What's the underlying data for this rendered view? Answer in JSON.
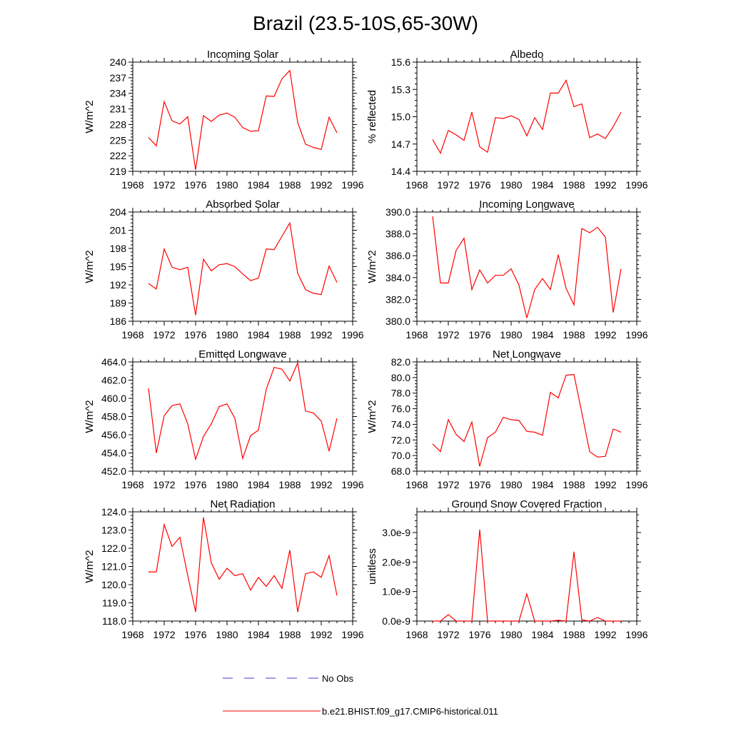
{
  "title": "Brazil (23.5-10S,65-30W)",
  "legend": [
    {
      "label": "No Obs",
      "color": "#3b3bcc",
      "style": "dashed"
    },
    {
      "label": "b.e21.BHIST.f09_g17.CMIP6-historical.011",
      "color": "#ff0000",
      "style": "solid"
    }
  ],
  "chart_data": [
    {
      "type": "line",
      "title": "Incoming Solar",
      "ylabel": "W/m^2",
      "xlim": [
        1968,
        1996
      ],
      "ylim": [
        219,
        240
      ],
      "xticks": [
        1968,
        1972,
        1976,
        1980,
        1984,
        1988,
        1992,
        1996
      ],
      "yticks": [
        "219",
        "222",
        "225",
        "228",
        "231",
        "234",
        "237",
        "240"
      ],
      "x": [
        1970,
        1971,
        1972,
        1973,
        1974,
        1975,
        1976,
        1977,
        1978,
        1979,
        1980,
        1981,
        1982,
        1983,
        1984,
        1985,
        1986,
        1987,
        1988,
        1989,
        1990,
        1991,
        1992,
        1993,
        1994
      ],
      "series": [
        {
          "values": [
            225.5,
            223.9,
            232.4,
            228.7,
            228.1,
            229.5,
            219.3,
            229.7,
            228.6,
            229.8,
            230.2,
            229.4,
            227.4,
            226.7,
            226.8,
            233.5,
            233.4,
            236.8,
            238.4,
            228.4,
            224.2,
            223.6,
            223.2,
            229.4,
            226.4
          ],
          "color": "#ff0000"
        }
      ]
    },
    {
      "type": "line",
      "title": "Albedo",
      "ylabel": "% reflected",
      "xlim": [
        1968,
        1996
      ],
      "ylim": [
        14.4,
        15.6
      ],
      "xticks": [
        1968,
        1972,
        1976,
        1980,
        1984,
        1988,
        1992,
        1996
      ],
      "yticks": [
        "14.4",
        "14.7",
        "15.0",
        "15.3",
        "15.6"
      ],
      "x": [
        1970,
        1971,
        1972,
        1973,
        1974,
        1975,
        1976,
        1977,
        1978,
        1979,
        1980,
        1981,
        1982,
        1983,
        1984,
        1985,
        1986,
        1987,
        1988,
        1989,
        1990,
        1991,
        1992,
        1993,
        1994
      ],
      "series": [
        {
          "values": [
            14.75,
            14.6,
            14.85,
            14.8,
            14.74,
            15.05,
            14.67,
            14.61,
            14.99,
            14.98,
            15.01,
            14.97,
            14.79,
            14.99,
            14.86,
            15.26,
            15.26,
            15.4,
            15.11,
            15.14,
            14.77,
            14.81,
            14.76,
            14.89,
            15.05
          ],
          "color": "#ff0000"
        }
      ]
    },
    {
      "type": "line",
      "title": "Absorbed Solar",
      "ylabel": "W/m^2",
      "xlim": [
        1968,
        1996
      ],
      "ylim": [
        186,
        204
      ],
      "xticks": [
        1968,
        1972,
        1976,
        1980,
        1984,
        1988,
        1992,
        1996
      ],
      "yticks": [
        "186",
        "189",
        "192",
        "195",
        "198",
        "201",
        "204"
      ],
      "x": [
        1970,
        1971,
        1972,
        1973,
        1974,
        1975,
        1976,
        1977,
        1978,
        1979,
        1980,
        1981,
        1982,
        1983,
        1984,
        1985,
        1986,
        1987,
        1988,
        1989,
        1990,
        1991,
        1992,
        1993,
        1994
      ],
      "series": [
        {
          "values": [
            192.2,
            191.3,
            197.9,
            194.9,
            194.5,
            194.9,
            187.0,
            196.2,
            194.3,
            195.3,
            195.5,
            195.0,
            193.8,
            192.7,
            193.1,
            197.9,
            197.8,
            200.0,
            202.2,
            193.9,
            191.2,
            190.6,
            190.4,
            195.1,
            192.4
          ],
          "color": "#ff0000"
        }
      ]
    },
    {
      "type": "line",
      "title": "Incoming Longwave",
      "ylabel": "W/m^2",
      "xlim": [
        1968,
        1996
      ],
      "ylim": [
        380.0,
        390.0
      ],
      "xticks": [
        1968,
        1972,
        1976,
        1980,
        1984,
        1988,
        1992,
        1996
      ],
      "yticks": [
        "380.0",
        "382.0",
        "384.0",
        "386.0",
        "388.0",
        "390.0"
      ],
      "x": [
        1970,
        1971,
        1972,
        1973,
        1974,
        1975,
        1976,
        1977,
        1978,
        1979,
        1980,
        1981,
        1982,
        1983,
        1984,
        1985,
        1986,
        1987,
        1988,
        1989,
        1990,
        1991,
        1992,
        1993,
        1994
      ],
      "series": [
        {
          "values": [
            389.6,
            383.5,
            383.5,
            386.5,
            387.6,
            382.9,
            384.7,
            383.5,
            384.2,
            384.2,
            384.8,
            383.3,
            380.3,
            382.9,
            383.9,
            382.9,
            386.1,
            383.0,
            381.5,
            388.5,
            388.1,
            388.6,
            387.7,
            380.8,
            384.8
          ],
          "color": "#ff0000"
        }
      ]
    },
    {
      "type": "line",
      "title": "Emitted Longwave",
      "ylabel": "W/m^2",
      "xlim": [
        1968,
        1996
      ],
      "ylim": [
        452.0,
        464.0
      ],
      "xticks": [
        1968,
        1972,
        1976,
        1980,
        1984,
        1988,
        1992,
        1996
      ],
      "yticks": [
        "452.0",
        "454.0",
        "456.0",
        "458.0",
        "460.0",
        "462.0",
        "464.0"
      ],
      "x": [
        1970,
        1971,
        1972,
        1973,
        1974,
        1975,
        1976,
        1977,
        1978,
        1979,
        1980,
        1981,
        1982,
        1983,
        1984,
        1985,
        1986,
        1987,
        1988,
        1989,
        1990,
        1991,
        1992,
        1993,
        1994
      ],
      "series": [
        {
          "values": [
            461.1,
            454.0,
            458.1,
            459.2,
            459.4,
            457.2,
            453.3,
            455.8,
            457.2,
            459.1,
            459.4,
            457.8,
            453.4,
            455.9,
            456.5,
            461.0,
            463.4,
            463.2,
            461.9,
            463.9,
            458.6,
            458.4,
            457.5,
            454.2,
            457.8
          ],
          "color": "#ff0000"
        }
      ]
    },
    {
      "type": "line",
      "title": "Net Longwave",
      "ylabel": "W/m^2",
      "xlim": [
        1968,
        1996
      ],
      "ylim": [
        68.0,
        82.0
      ],
      "xticks": [
        1968,
        1972,
        1976,
        1980,
        1984,
        1988,
        1992,
        1996
      ],
      "yticks": [
        "68.0",
        "70.0",
        "72.0",
        "74.0",
        "76.0",
        "78.0",
        "80.0",
        "82.0"
      ],
      "x": [
        1970,
        1971,
        1972,
        1973,
        1974,
        1975,
        1976,
        1977,
        1978,
        1979,
        1980,
        1981,
        1982,
        1983,
        1984,
        1985,
        1986,
        1987,
        1988,
        1989,
        1990,
        1991,
        1992,
        1993,
        1994
      ],
      "series": [
        {
          "values": [
            71.5,
            70.5,
            74.6,
            72.7,
            71.8,
            74.3,
            68.6,
            72.3,
            73.0,
            74.9,
            74.6,
            74.5,
            73.1,
            73.0,
            72.6,
            78.1,
            77.4,
            80.3,
            80.4,
            75.5,
            70.5,
            69.8,
            69.9,
            73.4,
            73.0
          ],
          "color": "#ff0000"
        }
      ]
    },
    {
      "type": "line",
      "title": "Net Radiation",
      "ylabel": "W/m^2",
      "xlim": [
        1968,
        1996
      ],
      "ylim": [
        118.0,
        124.0
      ],
      "xticks": [
        1968,
        1972,
        1976,
        1980,
        1984,
        1988,
        1992,
        1996
      ],
      "yticks": [
        "118.0",
        "119.0",
        "120.0",
        "121.0",
        "122.0",
        "123.0",
        "124.0"
      ],
      "x": [
        1970,
        1971,
        1972,
        1973,
        1974,
        1975,
        1976,
        1977,
        1978,
        1979,
        1980,
        1981,
        1982,
        1983,
        1984,
        1985,
        1986,
        1987,
        1988,
        1989,
        1990,
        1991,
        1992,
        1993,
        1994
      ],
      "series": [
        {
          "values": [
            120.7,
            120.7,
            123.3,
            122.1,
            122.6,
            120.5,
            118.5,
            123.7,
            121.2,
            120.3,
            120.9,
            120.5,
            120.6,
            119.7,
            120.4,
            119.9,
            120.5,
            119.8,
            121.9,
            118.5,
            120.6,
            120.7,
            120.4,
            121.6,
            119.4
          ],
          "color": "#ff0000"
        }
      ]
    },
    {
      "type": "line",
      "title": "Ground Snow Covered Fraction",
      "ylabel": "unitless",
      "xlim": [
        1968,
        1996
      ],
      "ylim": [
        0,
        3.7
      ],
      "xticks": [
        1968,
        1972,
        1976,
        1980,
        1984,
        1988,
        1992,
        1996
      ],
      "yticks": [
        "0.0e-9",
        "1.0e-9",
        "2.0e-9",
        "3.0e-9"
      ],
      "x": [
        1970,
        1971,
        1972,
        1973,
        1974,
        1975,
        1976,
        1977,
        1978,
        1979,
        1980,
        1981,
        1982,
        1983,
        1984,
        1985,
        1986,
        1987,
        1988,
        1989,
        1990,
        1991,
        1992,
        1993,
        1994
      ],
      "series": [
        {
          "values": [
            0,
            0,
            0.22,
            0,
            0,
            0,
            3.1,
            0,
            0,
            0,
            0,
            0,
            0.92,
            0,
            0,
            0,
            0.03,
            0,
            2.35,
            0.04,
            0,
            0.12,
            0,
            0,
            0
          ],
          "color": "#ff0000"
        }
      ]
    }
  ]
}
